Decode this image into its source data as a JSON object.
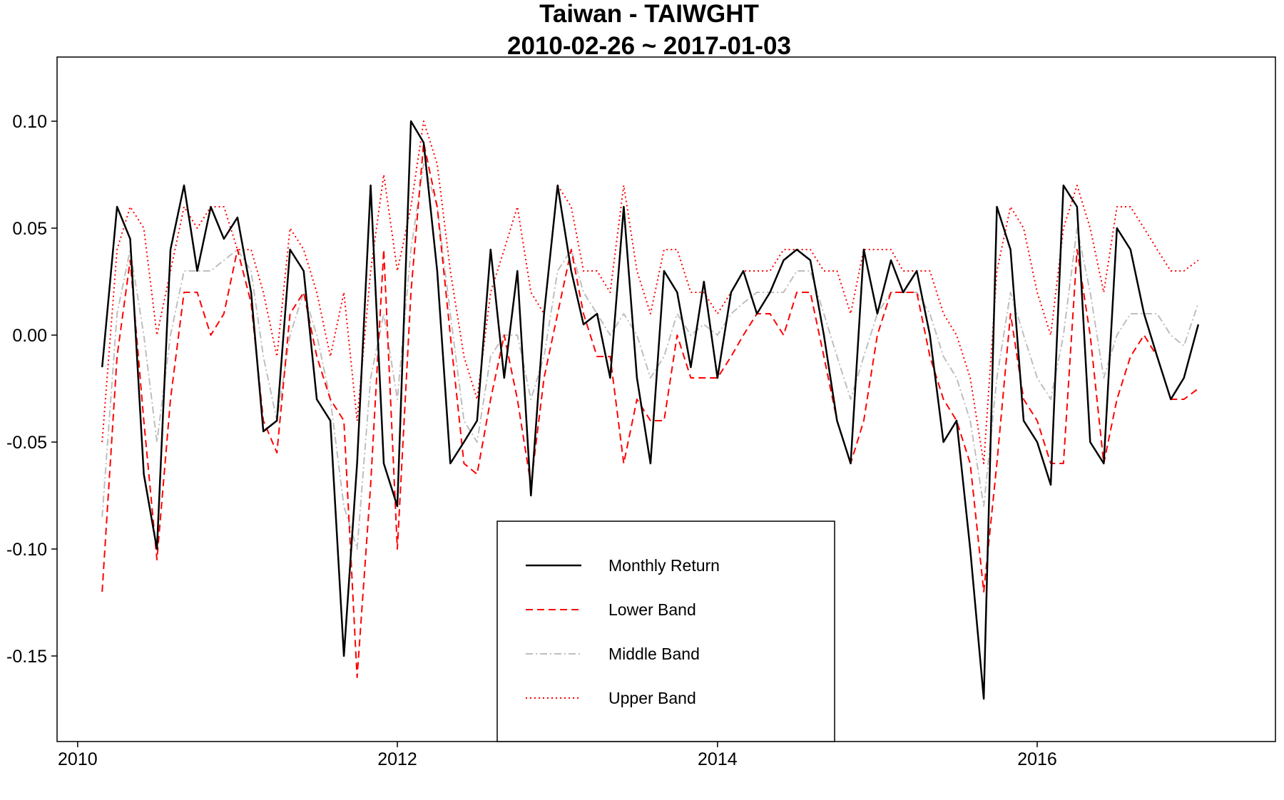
{
  "chart_data": {
    "type": "line",
    "title": "Taiwan - TAIWGHT",
    "subtitle": "2010-02-26 ~ 2017-01-03",
    "xlabel": "",
    "ylabel": "",
    "xlim": [
      "2009-11-15",
      "2017-06-28"
    ],
    "ylim": [
      -0.19,
      0.13
    ],
    "x_ticks": [
      "2010",
      "2012",
      "2014",
      "2016"
    ],
    "y_ticks": [
      "0.10",
      "0.05",
      "0.00",
      "-0.05",
      "-0.10",
      "-0.15"
    ],
    "y_tick_values": [
      0.1,
      0.05,
      0.0,
      -0.05,
      -0.1,
      -0.15
    ],
    "grid": false,
    "legend_position": "bottom-center",
    "colors": {
      "Monthly Return": "#000000",
      "Lower Band": "#ff0000",
      "Middle Band": "#bebebe",
      "Upper Band": "#ff0000"
    },
    "x": [
      "2010-02-26",
      "2010-04-01",
      "2010-05-01",
      "2010-06-01",
      "2010-07-01",
      "2010-08-01",
      "2010-09-01",
      "2010-10-01",
      "2010-11-01",
      "2010-12-01",
      "2011-01-01",
      "2011-02-01",
      "2011-03-01",
      "2011-04-01",
      "2011-05-01",
      "2011-06-01",
      "2011-07-01",
      "2011-08-01",
      "2011-09-01",
      "2011-10-01",
      "2011-11-01",
      "2011-12-01",
      "2012-01-01",
      "2012-02-01",
      "2012-03-01",
      "2012-04-01",
      "2012-05-01",
      "2012-06-01",
      "2012-07-01",
      "2012-08-01",
      "2012-09-01",
      "2012-10-01",
      "2012-11-01",
      "2012-12-01",
      "2013-01-01",
      "2013-02-01",
      "2013-03-01",
      "2013-04-01",
      "2013-05-01",
      "2013-06-01",
      "2013-07-01",
      "2013-08-01",
      "2013-09-01",
      "2013-10-01",
      "2013-11-01",
      "2013-12-01",
      "2014-01-01",
      "2014-02-01",
      "2014-03-01",
      "2014-04-01",
      "2014-05-01",
      "2014-06-01",
      "2014-07-01",
      "2014-08-01",
      "2014-09-01",
      "2014-10-01",
      "2014-11-01",
      "2014-12-01",
      "2015-01-01",
      "2015-02-01",
      "2015-03-01",
      "2015-04-01",
      "2015-05-01",
      "2015-06-01",
      "2015-07-01",
      "2015-08-01",
      "2015-09-01",
      "2015-10-01",
      "2015-11-01",
      "2015-12-01",
      "2016-01-01",
      "2016-02-01",
      "2016-03-01",
      "2016-04-01",
      "2016-05-01",
      "2016-06-01",
      "2016-07-01",
      "2016-08-01",
      "2016-09-01",
      "2016-10-01",
      "2016-11-01",
      "2016-12-01",
      "2017-01-03"
    ],
    "series": [
      {
        "name": "Monthly Return",
        "style": "solid",
        "values": [
          -0.015,
          0.06,
          0.045,
          -0.065,
          -0.1,
          0.04,
          0.07,
          0.03,
          0.06,
          0.045,
          0.055,
          0.02,
          -0.045,
          -0.04,
          0.04,
          0.03,
          -0.03,
          -0.04,
          -0.15,
          -0.06,
          0.07,
          -0.06,
          -0.08,
          0.1,
          0.09,
          0.03,
          -0.06,
          -0.05,
          -0.04,
          0.04,
          -0.02,
          0.03,
          -0.075,
          0.01,
          0.07,
          0.03,
          0.005,
          0.01,
          -0.02,
          0.06,
          -0.02,
          -0.06,
          0.03,
          0.02,
          -0.015,
          0.025,
          -0.02,
          0.02,
          0.03,
          0.01,
          0.02,
          0.035,
          0.04,
          0.035,
          0.0,
          -0.04,
          -0.06,
          0.04,
          0.01,
          0.035,
          0.02,
          0.03,
          0.0,
          -0.05,
          -0.04,
          -0.1,
          -0.17,
          0.06,
          0.04,
          -0.04,
          -0.05,
          -0.07,
          0.07,
          0.06,
          -0.05,
          -0.06,
          0.05,
          0.04,
          0.01,
          -0.01,
          -0.03,
          -0.02,
          0.005
        ]
      },
      {
        "name": "Lower Band",
        "style": "dashed",
        "values": [
          -0.12,
          -0.01,
          0.035,
          -0.04,
          -0.105,
          -0.03,
          0.02,
          0.02,
          0.0,
          0.01,
          0.04,
          0.015,
          -0.04,
          -0.055,
          0.01,
          0.02,
          -0.01,
          -0.03,
          -0.04,
          -0.16,
          -0.07,
          0.04,
          -0.1,
          0.02,
          0.09,
          0.06,
          0.0,
          -0.06,
          -0.065,
          -0.03,
          0.0,
          -0.03,
          -0.07,
          -0.02,
          0.01,
          0.04,
          0.01,
          -0.01,
          -0.01,
          -0.06,
          -0.03,
          -0.04,
          -0.04,
          0.0,
          -0.02,
          -0.02,
          -0.02,
          -0.01,
          0.0,
          0.01,
          0.01,
          0.0,
          0.02,
          0.02,
          -0.01,
          -0.04,
          -0.06,
          -0.04,
          0.0,
          0.02,
          0.02,
          0.02,
          -0.01,
          -0.03,
          -0.04,
          -0.06,
          -0.12,
          -0.06,
          0.01,
          -0.03,
          -0.04,
          -0.06,
          -0.06,
          0.04,
          0.0,
          -0.06,
          -0.03,
          -0.01,
          0.0,
          -0.01,
          -0.03,
          -0.03,
          -0.025
        ]
      },
      {
        "name": "Middle Band",
        "style": "dotdash",
        "values": [
          -0.085,
          0.01,
          0.04,
          0.0,
          -0.05,
          0.0,
          0.03,
          0.03,
          0.03,
          0.035,
          0.04,
          0.03,
          -0.01,
          -0.04,
          0.0,
          0.02,
          0.0,
          -0.03,
          -0.08,
          -0.1,
          -0.02,
          0.01,
          -0.03,
          0.04,
          0.08,
          0.06,
          0.01,
          -0.04,
          -0.05,
          -0.01,
          0.0,
          0.0,
          -0.03,
          -0.01,
          0.03,
          0.04,
          0.02,
          0.01,
          0.0,
          0.01,
          0.0,
          -0.02,
          -0.01,
          0.01,
          0.0,
          0.005,
          0.0,
          0.01,
          0.015,
          0.02,
          0.02,
          0.02,
          0.03,
          0.03,
          0.01,
          -0.01,
          -0.03,
          -0.01,
          0.01,
          0.02,
          0.02,
          0.02,
          0.01,
          -0.01,
          -0.02,
          -0.04,
          -0.08,
          -0.02,
          0.02,
          0.0,
          -0.02,
          -0.03,
          0.0,
          0.05,
          0.02,
          -0.02,
          0.0,
          0.01,
          0.01,
          0.01,
          0.0,
          -0.005,
          0.015
        ]
      },
      {
        "name": "Upper Band",
        "style": "dotted",
        "values": [
          -0.05,
          0.04,
          0.06,
          0.05,
          0.0,
          0.03,
          0.06,
          0.05,
          0.06,
          0.06,
          0.04,
          0.04,
          0.02,
          -0.01,
          0.05,
          0.04,
          0.02,
          -0.01,
          0.02,
          -0.04,
          0.03,
          0.075,
          0.03,
          0.06,
          0.1,
          0.08,
          0.03,
          -0.01,
          -0.03,
          0.02,
          0.04,
          0.06,
          0.02,
          0.01,
          0.07,
          0.06,
          0.03,
          0.03,
          0.02,
          0.07,
          0.03,
          0.01,
          0.04,
          0.04,
          0.02,
          0.02,
          0.01,
          0.02,
          0.03,
          0.03,
          0.03,
          0.04,
          0.04,
          0.04,
          0.03,
          0.03,
          0.01,
          0.04,
          0.04,
          0.04,
          0.03,
          0.03,
          0.03,
          0.01,
          0.0,
          -0.02,
          -0.06,
          0.03,
          0.06,
          0.05,
          0.02,
          0.0,
          0.05,
          0.07,
          0.05,
          0.02,
          0.06,
          0.06,
          0.05,
          0.04,
          0.03,
          0.03,
          0.035
        ]
      }
    ]
  },
  "legend": {
    "items": [
      {
        "label": "Monthly Return"
      },
      {
        "label": "Lower Band"
      },
      {
        "label": "Middle Band"
      },
      {
        "label": "Upper Band"
      }
    ]
  }
}
